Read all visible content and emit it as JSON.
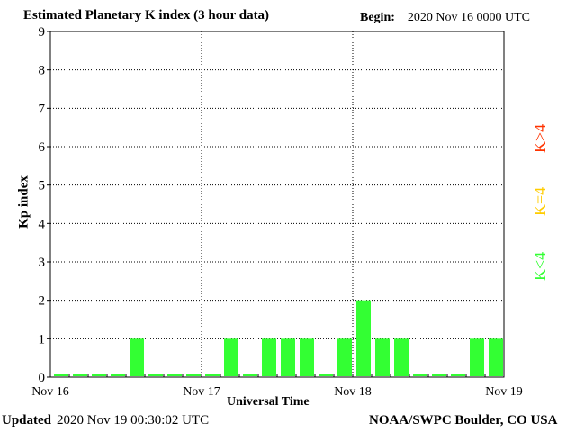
{
  "header": {
    "title": "Estimated Planetary K index (3 hour data)",
    "begin_label": "Begin:",
    "begin_value": "2020 Nov 16 0000 UTC"
  },
  "footer": {
    "updated_label": "Updated",
    "updated_value": "2020 Nov 19 00:30:02 UTC",
    "credit": "NOAA/SWPC Boulder, CO USA"
  },
  "legend": {
    "high": {
      "label": "K>4",
      "color": "#ff3300"
    },
    "mid": {
      "label": "K=4",
      "color": "#ffcc00"
    },
    "low": {
      "label": "K<4",
      "color": "#33ff33"
    }
  },
  "chart_data": {
    "type": "bar",
    "title": "Estimated Planetary K index (3 hour data)",
    "xlabel": "Universal Time",
    "ylabel": "Kp index",
    "ylim": [
      0,
      9
    ],
    "yticks": [
      "0",
      "1",
      "2",
      "3",
      "4",
      "5",
      "6",
      "7",
      "8",
      "9"
    ],
    "xticks": [
      "Nov 16",
      "Nov 17",
      "Nov 18",
      "Nov 19"
    ],
    "bar_color": "#33ff33",
    "grid": true,
    "values": [
      0,
      0,
      0,
      0,
      1,
      0,
      0,
      0,
      0,
      1,
      0,
      1,
      1,
      1,
      0,
      1,
      2,
      1,
      1,
      0,
      0,
      0,
      1,
      1
    ]
  }
}
